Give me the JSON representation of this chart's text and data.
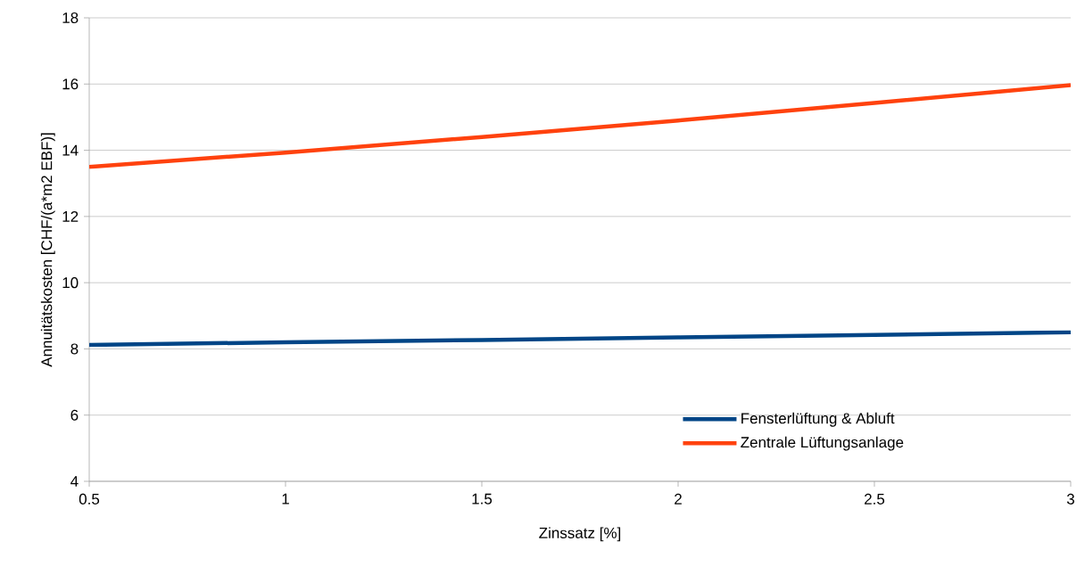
{
  "chart_data": {
    "type": "line",
    "xlabel": "Zinssatz [%]",
    "ylabel": "Annuitätskosten [CHF/(a*m2 EBF)]",
    "x": [
      0.5,
      1,
      1.5,
      2,
      2.5,
      3
    ],
    "series": [
      {
        "name": "Fensterlüftung & Abluft",
        "color": "#004586",
        "values": [
          8.12,
          8.2,
          8.27,
          8.35,
          8.42,
          8.5
        ]
      },
      {
        "name": "Zentrale Lüftungsanlage",
        "color": "#ff420e",
        "values": [
          13.5,
          13.93,
          14.4,
          14.9,
          15.43,
          15.97
        ]
      }
    ],
    "xlim": [
      0.5,
      3
    ],
    "ylim": [
      4,
      18
    ],
    "xticks": [
      0.5,
      1,
      1.5,
      2,
      2.5,
      3
    ],
    "yticks": [
      4,
      6,
      8,
      10,
      12,
      14,
      16,
      18
    ],
    "grid": "y",
    "legend": "bottom right",
    "marker": "none",
    "line_style": "solid"
  }
}
